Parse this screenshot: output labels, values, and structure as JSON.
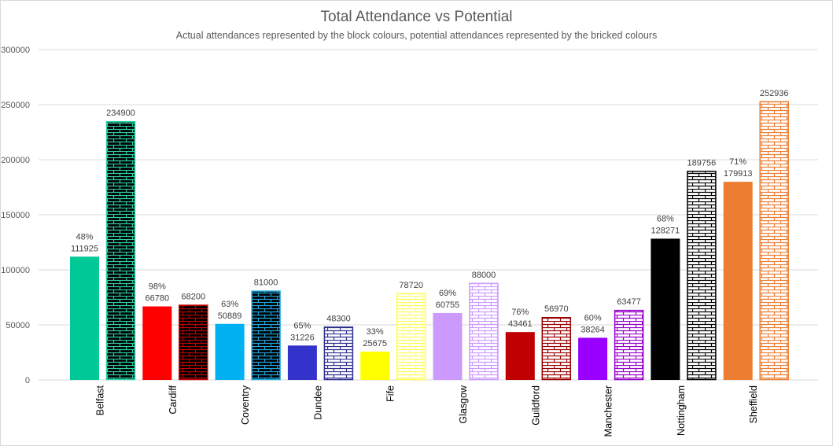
{
  "chart_data": {
    "type": "bar",
    "title": "Total Attendance vs Potential",
    "subtitle": "Actual attendances represented by the block colours, potential attendances represented by the bricked colours",
    "xlabel": "",
    "ylabel": "",
    "ylim": [
      0,
      300000
    ],
    "yticks": [
      0,
      50000,
      100000,
      150000,
      200000,
      250000,
      300000
    ],
    "ytick_labels": [
      "0",
      "50000",
      "100000",
      "150000",
      "200000",
      "250000",
      "300000"
    ],
    "grid": true,
    "legend": "none",
    "categories": [
      "Belfast",
      "Cardiff",
      "Coventry",
      "Dundee",
      "Fife",
      "Glasgow",
      "Guildford",
      "Manchester",
      "Nottingham",
      "Sheffield"
    ],
    "series": [
      {
        "name": "Actual attendance",
        "pattern": "solid",
        "values": [
          111925,
          66780,
          50889,
          31226,
          25675,
          60755,
          43461,
          38264,
          128271,
          179913
        ],
        "percent_labels": [
          "48%",
          "98%",
          "63%",
          "65%",
          "33%",
          "69%",
          "76%",
          "60%",
          "68%",
          "71%"
        ],
        "value_labels": [
          "111925",
          "66780",
          "50889",
          "31226",
          "25675",
          "60755",
          "43461",
          "38264",
          "128271",
          "179913"
        ]
      },
      {
        "name": "Potential attendance",
        "pattern": "brick",
        "values": [
          234900,
          68200,
          81000,
          48300,
          78720,
          88000,
          56970,
          63477,
          189756,
          252936
        ],
        "value_labels": [
          "234900",
          "68200",
          "81000",
          "48300",
          "78720",
          "88000",
          "56970",
          "63477",
          "189756",
          "252936"
        ]
      }
    ],
    "colors": {
      "solid": [
        "#00c896",
        "#ff0000",
        "#00b0f0",
        "#3333cc",
        "#ffff00",
        "#cc99ff",
        "#c00000",
        "#9900ff",
        "#000000",
        "#ed7d31"
      ],
      "brick_line": [
        "#2ed1a6",
        "#c00000",
        "#1ea7e0",
        "#2f2f8f",
        "#ffff55",
        "#cc99ff",
        "#990000",
        "#9900cc",
        "#000000",
        "#ed7d31"
      ],
      "brick_bg": [
        "#000000",
        "#000000",
        "#000000",
        "#ffffff",
        "#ffffff",
        "#ffffff",
        "#ffffff",
        "#ffffff",
        "#ffffff",
        "#ffffff"
      ]
    }
  }
}
